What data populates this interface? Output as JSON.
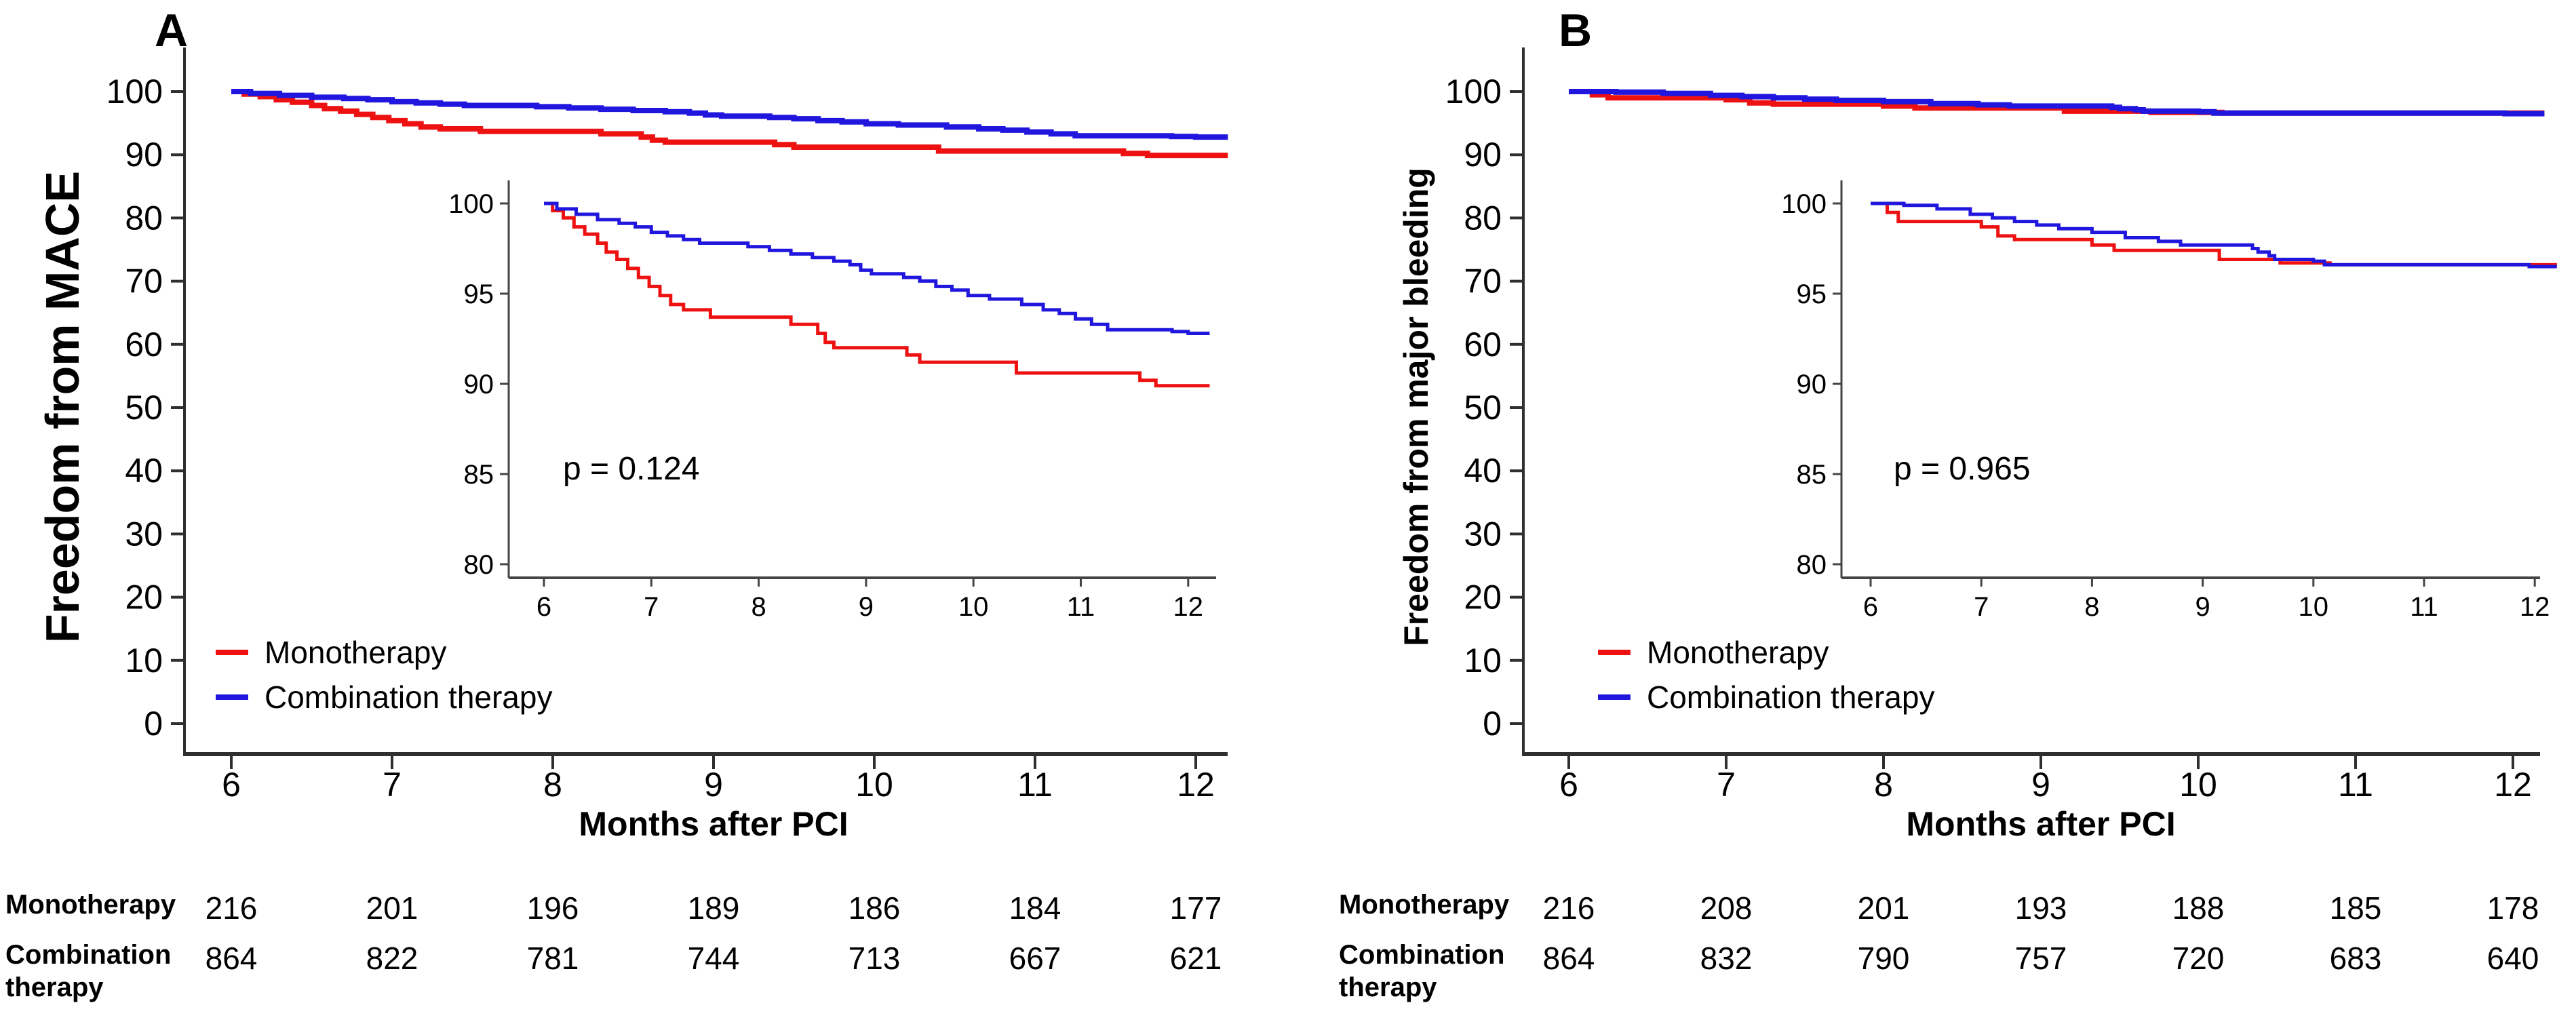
{
  "chart_data": [
    {
      "type": "line",
      "panel_label": "A",
      "title": "",
      "xlabel": "Months after PCI",
      "ylabel": "Freedom from MACE",
      "x_ticks": [
        6,
        7,
        8,
        9,
        10,
        11,
        12
      ],
      "y_ticks": [
        100,
        90,
        80,
        70,
        60,
        50,
        40,
        30,
        20,
        10,
        0
      ],
      "xlim": [
        6,
        12.2
      ],
      "ylim": [
        0,
        105
      ],
      "grid": false,
      "step": true,
      "legend_position": "lower-left-inside",
      "series": [
        {
          "name": "Monotherapy",
          "color": "#ee1111",
          "points": [
            [
              6,
              100
            ],
            [
              6.08,
              99.6
            ],
            [
              6.18,
              99.2
            ],
            [
              6.28,
              98.7
            ],
            [
              6.38,
              98.3
            ],
            [
              6.5,
              97.8
            ],
            [
              6.58,
              97.3
            ],
            [
              6.68,
              96.9
            ],
            [
              6.78,
              96.4
            ],
            [
              6.88,
              95.9
            ],
            [
              6.98,
              95.4
            ],
            [
              7.08,
              94.9
            ],
            [
              7.18,
              94.4
            ],
            [
              7.3,
              94.1
            ],
            [
              7.55,
              93.7
            ],
            [
              8.3,
              93.3
            ],
            [
              8.55,
              92.8
            ],
            [
              8.62,
              92.3
            ],
            [
              8.7,
              92.0
            ],
            [
              9.38,
              91.6
            ],
            [
              9.5,
              91.2
            ],
            [
              10.4,
              90.6
            ],
            [
              11.55,
              90.2
            ],
            [
              11.7,
              89.9
            ],
            [
              12.2,
              89.9
            ]
          ]
        },
        {
          "name": "Combination therapy",
          "color": "#2016dd",
          "points": [
            [
              6,
              100
            ],
            [
              6.12,
              99.7
            ],
            [
              6.3,
              99.4
            ],
            [
              6.5,
              99.1
            ],
            [
              6.7,
              98.9
            ],
            [
              6.85,
              98.7
            ],
            [
              7.0,
              98.4
            ],
            [
              7.15,
              98.2
            ],
            [
              7.3,
              98.0
            ],
            [
              7.45,
              97.8
            ],
            [
              7.9,
              97.6
            ],
            [
              8.1,
              97.4
            ],
            [
              8.3,
              97.2
            ],
            [
              8.5,
              97.0
            ],
            [
              8.7,
              96.8
            ],
            [
              8.85,
              96.6
            ],
            [
              8.95,
              96.3
            ],
            [
              9.05,
              96.1
            ],
            [
              9.35,
              95.9
            ],
            [
              9.5,
              95.7
            ],
            [
              9.65,
              95.4
            ],
            [
              9.8,
              95.2
            ],
            [
              9.95,
              94.9
            ],
            [
              10.15,
              94.7
            ],
            [
              10.45,
              94.4
            ],
            [
              10.65,
              94.1
            ],
            [
              10.8,
              93.9
            ],
            [
              10.95,
              93.6
            ],
            [
              11.1,
              93.3
            ],
            [
              11.25,
              93.0
            ],
            [
              11.85,
              92.9
            ],
            [
              12.0,
              92.8
            ],
            [
              12.2,
              92.8
            ]
          ]
        }
      ],
      "legend": [
        {
          "label": "Monotherapy",
          "color": "#ee1111"
        },
        {
          "label": "Combination therapy",
          "color": "#2016dd"
        }
      ],
      "inset": {
        "p_text": "p = 0.124",
        "x_ticks": [
          6,
          7,
          8,
          9,
          10,
          11,
          12
        ],
        "y_ticks": [
          100,
          95,
          90,
          85,
          80
        ],
        "xlim": [
          6,
          12.2
        ],
        "ylim": [
          79,
          101
        ]
      },
      "at_risk": {
        "rows": [
          {
            "label": "Monotherapy",
            "counts": [
              216,
              201,
              196,
              189,
              186,
              184,
              177
            ]
          },
          {
            "label": "Combination therapy",
            "counts": [
              864,
              822,
              781,
              744,
              713,
              667,
              621
            ]
          }
        ]
      }
    },
    {
      "type": "line",
      "panel_label": "B",
      "title": "",
      "xlabel": "Months after PCI",
      "ylabel": "Freedom from major bleeding",
      "x_ticks": [
        6,
        7,
        8,
        9,
        10,
        11,
        12
      ],
      "y_ticks": [
        100,
        90,
        80,
        70,
        60,
        50,
        40,
        30,
        20,
        10,
        0
      ],
      "xlim": [
        6,
        12.2
      ],
      "ylim": [
        0,
        105
      ],
      "grid": false,
      "step": true,
      "legend_position": "lower-left-inside",
      "series": [
        {
          "name": "Monotherapy",
          "color": "#ee1111",
          "points": [
            [
              6,
              100
            ],
            [
              6.15,
              99.5
            ],
            [
              6.25,
              99.0
            ],
            [
              7.0,
              98.7
            ],
            [
              7.15,
              98.2
            ],
            [
              7.3,
              98.0
            ],
            [
              8.0,
              97.7
            ],
            [
              8.2,
              97.4
            ],
            [
              9.15,
              96.9
            ],
            [
              9.7,
              96.7
            ],
            [
              10.15,
              96.6
            ],
            [
              12.2,
              96.6
            ]
          ]
        },
        {
          "name": "Combination therapy",
          "color": "#2016dd",
          "points": [
            [
              6,
              100
            ],
            [
              6.3,
              99.9
            ],
            [
              6.6,
              99.7
            ],
            [
              6.9,
              99.4
            ],
            [
              7.1,
              99.2
            ],
            [
              7.3,
              99.0
            ],
            [
              7.5,
              98.8
            ],
            [
              7.7,
              98.6
            ],
            [
              8.0,
              98.4
            ],
            [
              8.3,
              98.1
            ],
            [
              8.6,
              97.9
            ],
            [
              8.8,
              97.7
            ],
            [
              9.45,
              97.5
            ],
            [
              9.5,
              97.3
            ],
            [
              9.6,
              97.1
            ],
            [
              9.65,
              96.9
            ],
            [
              10.0,
              96.8
            ],
            [
              10.1,
              96.6
            ],
            [
              11.95,
              96.5
            ],
            [
              12.2,
              96.5
            ]
          ]
        }
      ],
      "legend": [
        {
          "label": "Monotherapy",
          "color": "#ee1111"
        },
        {
          "label": "Combination therapy",
          "color": "#2016dd"
        }
      ],
      "inset": {
        "p_text": "p = 0.965",
        "x_ticks": [
          6,
          7,
          8,
          9,
          10,
          11,
          12
        ],
        "y_ticks": [
          100,
          95,
          90,
          85,
          80
        ],
        "xlim": [
          6,
          12.2
        ],
        "ylim": [
          79,
          101
        ]
      },
      "at_risk": {
        "rows": [
          {
            "label": "Monotherapy",
            "counts": [
              216,
              208,
              201,
              193,
              188,
              185,
              178
            ]
          },
          {
            "label": "Combination therapy",
            "counts": [
              864,
              832,
              790,
              757,
              720,
              683,
              640
            ]
          }
        ]
      }
    }
  ]
}
